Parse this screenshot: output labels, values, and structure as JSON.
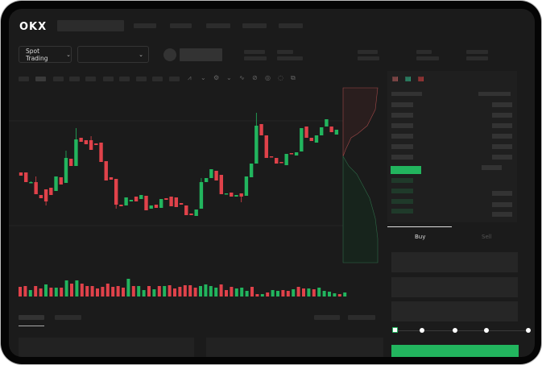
{
  "header": {
    "logo": "OKX",
    "spot_trading_label": "Spot Trading",
    "pair_dropdown_value": ""
  },
  "trade": {
    "buy_tab": "Buy",
    "sell_tab": "Sell",
    "active_tab": "Buy",
    "leverage_slider_fraction": 0
  },
  "orderbook": {
    "view_icons": [
      "orderbook-both-icon",
      "orderbook-bids-icon",
      "orderbook-asks-icon"
    ]
  },
  "colors": {
    "up": "#22b55e",
    "down": "#e0424a",
    "background": "#1b1b1b",
    "accent": "#22b55e"
  },
  "chart_data": {
    "type": "candlestick",
    "candles": [
      [
        97,
        93,
        97,
        93
      ],
      [
        97,
        85,
        97,
        85
      ],
      [
        85,
        85,
        86,
        84
      ],
      [
        85,
        70,
        92,
        70
      ],
      [
        69,
        65,
        69,
        65
      ],
      [
        76,
        61,
        76,
        56
      ],
      [
        78,
        69,
        78,
        69
      ],
      [
        74,
        92,
        74,
        92
      ],
      [
        91,
        82,
        91,
        82
      ],
      [
        84,
        115,
        124,
        84
      ],
      [
        114,
        105,
        114,
        105
      ],
      [
        105,
        138,
        152,
        105
      ],
      [
        140,
        135,
        140,
        135
      ],
      [
        137,
        132,
        137,
        132
      ],
      [
        137,
        125,
        142,
        125
      ],
      [
        133,
        131,
        133,
        131
      ],
      [
        134,
        110,
        134,
        110
      ],
      [
        111,
        87,
        111,
        87
      ],
      [
        91,
        88,
        91,
        88
      ],
      [
        89,
        57,
        89,
        52
      ],
      [
        57,
        55,
        57,
        55
      ],
      [
        56,
        66,
        56,
        66
      ],
      [
        61,
        63,
        61,
        63
      ],
      [
        67,
        61,
        67,
        61
      ],
      [
        64,
        69,
        64,
        69
      ],
      [
        68,
        50,
        68,
        50
      ],
      [
        52,
        56,
        52,
        56
      ],
      [
        57,
        53,
        57,
        53
      ],
      [
        53,
        64,
        53,
        64
      ],
      [
        65,
        63,
        65,
        63
      ],
      [
        67,
        55,
        67,
        55
      ],
      [
        66,
        54,
        66,
        54
      ],
      [
        59,
        57,
        59,
        57
      ],
      [
        56,
        44,
        56,
        44
      ],
      [
        46,
        44,
        46,
        44
      ],
      [
        43,
        51,
        43,
        51
      ],
      [
        52,
        85,
        90,
        52
      ],
      [
        85,
        90,
        85,
        90
      ],
      [
        90,
        101,
        90,
        101
      ],
      [
        99,
        87,
        99,
        87
      ],
      [
        94,
        70,
        94,
        70
      ],
      [
        70,
        71,
        70,
        71
      ],
      [
        72,
        67,
        72,
        67
      ],
      [
        67,
        69,
        67,
        69
      ],
      [
        71,
        67,
        71,
        60
      ],
      [
        68,
        92,
        68,
        92
      ],
      [
        91,
        108,
        91,
        108
      ],
      [
        108,
        155,
        171,
        108
      ],
      [
        157,
        143,
        157,
        143
      ],
      [
        143,
        115,
        143,
        115
      ],
      [
        117,
        116,
        117,
        116
      ],
      [
        115,
        108,
        115,
        108
      ],
      [
        110,
        109,
        110,
        109
      ],
      [
        106,
        120,
        106,
        120
      ],
      [
        121,
        120,
        121,
        120
      ],
      [
        118,
        122,
        118,
        122
      ],
      [
        123,
        152,
        123,
        152
      ],
      [
        154,
        140,
        154,
        140
      ],
      [
        140,
        136,
        140,
        136
      ],
      [
        134,
        143,
        134,
        143
      ],
      [
        143,
        153,
        143,
        153
      ],
      [
        154,
        163,
        160,
        163
      ],
      [
        154,
        147,
        154,
        147
      ],
      [
        144,
        150,
        144,
        150
      ]
    ],
    "volume": [
      {
        "v": 12,
        "d": "down"
      },
      {
        "v": 13,
        "d": "down"
      },
      {
        "v": 8,
        "d": "up"
      },
      {
        "v": 13,
        "d": "down"
      },
      {
        "v": 10,
        "d": "down"
      },
      {
        "v": 15,
        "d": "up"
      },
      {
        "v": 11,
        "d": "down"
      },
      {
        "v": 11,
        "d": "up"
      },
      {
        "v": 11,
        "d": "down"
      },
      {
        "v": 20,
        "d": "up"
      },
      {
        "v": 16,
        "d": "down"
      },
      {
        "v": 20,
        "d": "up"
      },
      {
        "v": 16,
        "d": "down"
      },
      {
        "v": 13,
        "d": "down"
      },
      {
        "v": 13,
        "d": "down"
      },
      {
        "v": 10,
        "d": "down"
      },
      {
        "v": 12,
        "d": "down"
      },
      {
        "v": 16,
        "d": "down"
      },
      {
        "v": 12,
        "d": "down"
      },
      {
        "v": 13,
        "d": "down"
      },
      {
        "v": 11,
        "d": "down"
      },
      {
        "v": 22,
        "d": "up"
      },
      {
        "v": 13,
        "d": "down"
      },
      {
        "v": 13,
        "d": "up"
      },
      {
        "v": 8,
        "d": "up"
      },
      {
        "v": 13,
        "d": "down"
      },
      {
        "v": 9,
        "d": "up"
      },
      {
        "v": 13,
        "d": "down"
      },
      {
        "v": 13,
        "d": "up"
      },
      {
        "v": 14,
        "d": "down"
      },
      {
        "v": 10,
        "d": "down"
      },
      {
        "v": 12,
        "d": "down"
      },
      {
        "v": 14,
        "d": "down"
      },
      {
        "v": 14,
        "d": "down"
      },
      {
        "v": 11,
        "d": "down"
      },
      {
        "v": 13,
        "d": "up"
      },
      {
        "v": 15,
        "d": "up"
      },
      {
        "v": 13,
        "d": "up"
      },
      {
        "v": 11,
        "d": "up"
      },
      {
        "v": 15,
        "d": "down"
      },
      {
        "v": 8,
        "d": "down"
      },
      {
        "v": 12,
        "d": "down"
      },
      {
        "v": 10,
        "d": "up"
      },
      {
        "v": 11,
        "d": "up"
      },
      {
        "v": 7,
        "d": "up"
      },
      {
        "v": 12,
        "d": "down"
      },
      {
        "v": 3,
        "d": "down"
      },
      {
        "v": 3,
        "d": "up"
      },
      {
        "v": 5,
        "d": "down"
      },
      {
        "v": 8,
        "d": "up"
      },
      {
        "v": 7,
        "d": "up"
      },
      {
        "v": 8,
        "d": "down"
      },
      {
        "v": 7,
        "d": "down"
      },
      {
        "v": 9,
        "d": "up"
      },
      {
        "v": 12,
        "d": "down"
      },
      {
        "v": 10,
        "d": "down"
      },
      {
        "v": 10,
        "d": "up"
      },
      {
        "v": 9,
        "d": "down"
      },
      {
        "v": 11,
        "d": "up"
      },
      {
        "v": 7,
        "d": "up"
      },
      {
        "v": 6,
        "d": "up"
      },
      {
        "v": 4,
        "d": "up"
      },
      {
        "v": 3,
        "d": "down"
      },
      {
        "v": 5,
        "d": "up"
      }
    ],
    "grid": true
  }
}
